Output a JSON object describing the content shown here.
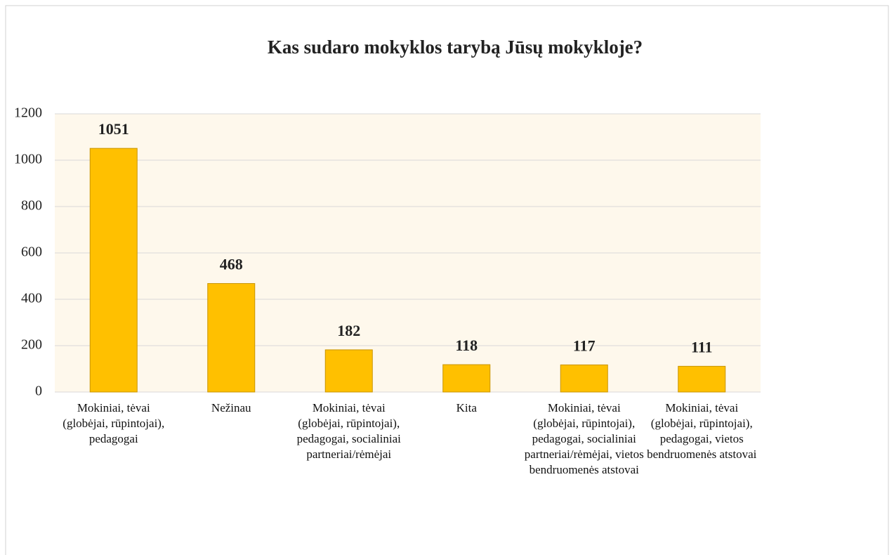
{
  "chart_data": {
    "type": "bar",
    "title": "Kas sudaro mokyklos tarybą Jūsų mokykloje?",
    "categories": [
      "Mokiniai, tėvai (globėjai, rūpintojai), pedagogai",
      "Nežinau",
      "Mokiniai, tėvai (globėjai, rūpintojai), pedagogai, socialiniai partneriai/rėmėjai",
      "Kita",
      "Mokiniai, tėvai (globėjai, rūpintojai), pedagogai, socialiniai partneriai/rėmėjai, vietos bendruomenės atstovai",
      "Mokiniai,  tėvai (globėjai, rūpintojai), pedagogai, vietos bendruomenės atstovai"
    ],
    "values": [
      1051,
      468,
      182,
      118,
      117,
      111
    ],
    "color": "#ffc000",
    "ylim": [
      0,
      1200
    ],
    "yticks": [
      0,
      200,
      400,
      600,
      800,
      1000,
      1200
    ],
    "grid": true
  }
}
